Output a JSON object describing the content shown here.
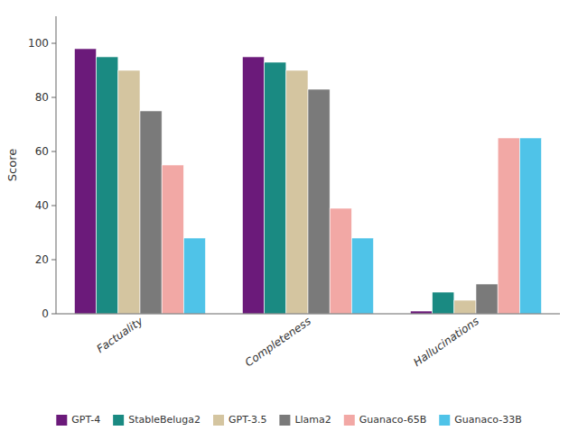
{
  "chart_data": {
    "type": "bar",
    "categories": [
      "Factuality",
      "Completeness",
      "Hallucinations"
    ],
    "series": [
      {
        "name": "GPT-4",
        "color": "#6B1A7A",
        "values": [
          98,
          95,
          1
        ]
      },
      {
        "name": "StableBeluga2",
        "color": "#1A8A82",
        "values": [
          95,
          93,
          8
        ]
      },
      {
        "name": "GPT-3.5",
        "color": "#D4C5A0",
        "values": [
          90,
          90,
          5
        ]
      },
      {
        "name": "Llama2",
        "color": "#7A7A7A",
        "values": [
          75,
          83,
          11
        ]
      },
      {
        "name": "Guanaco-65B",
        "color": "#F2A8A5",
        "values": [
          55,
          39,
          65
        ]
      },
      {
        "name": "Guanaco-33B",
        "color": "#4FC3E8",
        "values": [
          28,
          28,
          65
        ]
      }
    ],
    "ylabel": "Score",
    "ylim": [
      0,
      110
    ],
    "yticks": [
      0,
      20,
      40,
      60,
      80,
      100
    ],
    "grid": false,
    "legend": "bottom"
  }
}
